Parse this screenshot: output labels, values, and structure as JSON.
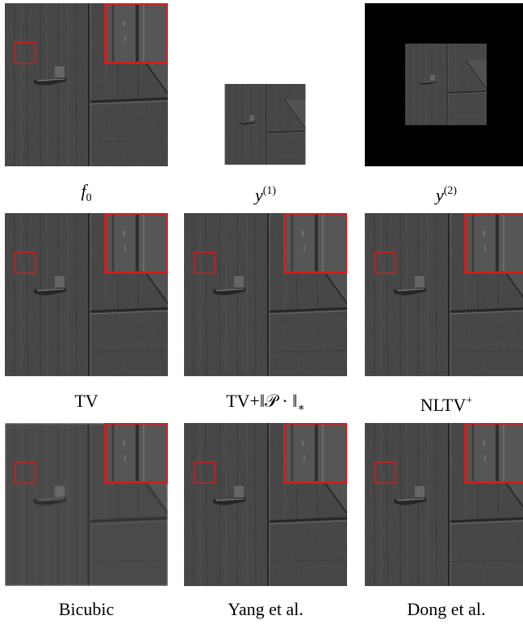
{
  "figure": {
    "panels": [
      {
        "id": "f0",
        "label_main": "f",
        "label_sub": "0"
      },
      {
        "id": "y1",
        "label_main": "y",
        "label_sup": "(1)"
      },
      {
        "id": "y2",
        "label_main": "y",
        "label_sup": "(2)"
      },
      {
        "id": "tv",
        "label": "TV"
      },
      {
        "id": "tvnuc",
        "label": "TV+‖𝒫 · ‖",
        "label_sub": "∗"
      },
      {
        "id": "nltv",
        "label": "NLTV",
        "label_sup": "+"
      },
      {
        "id": "bicubic",
        "label": "Bicubic"
      },
      {
        "id": "yang",
        "label": "Yang et al."
      },
      {
        "id": "dong",
        "label": "Dong et al."
      }
    ],
    "colors": {
      "wood": "#4a4a4a",
      "wood_dark": "#3a3a3a",
      "wood_light": "#5c5c5c",
      "zoom_box": "#d81b1b",
      "background_black": "#000000"
    }
  }
}
